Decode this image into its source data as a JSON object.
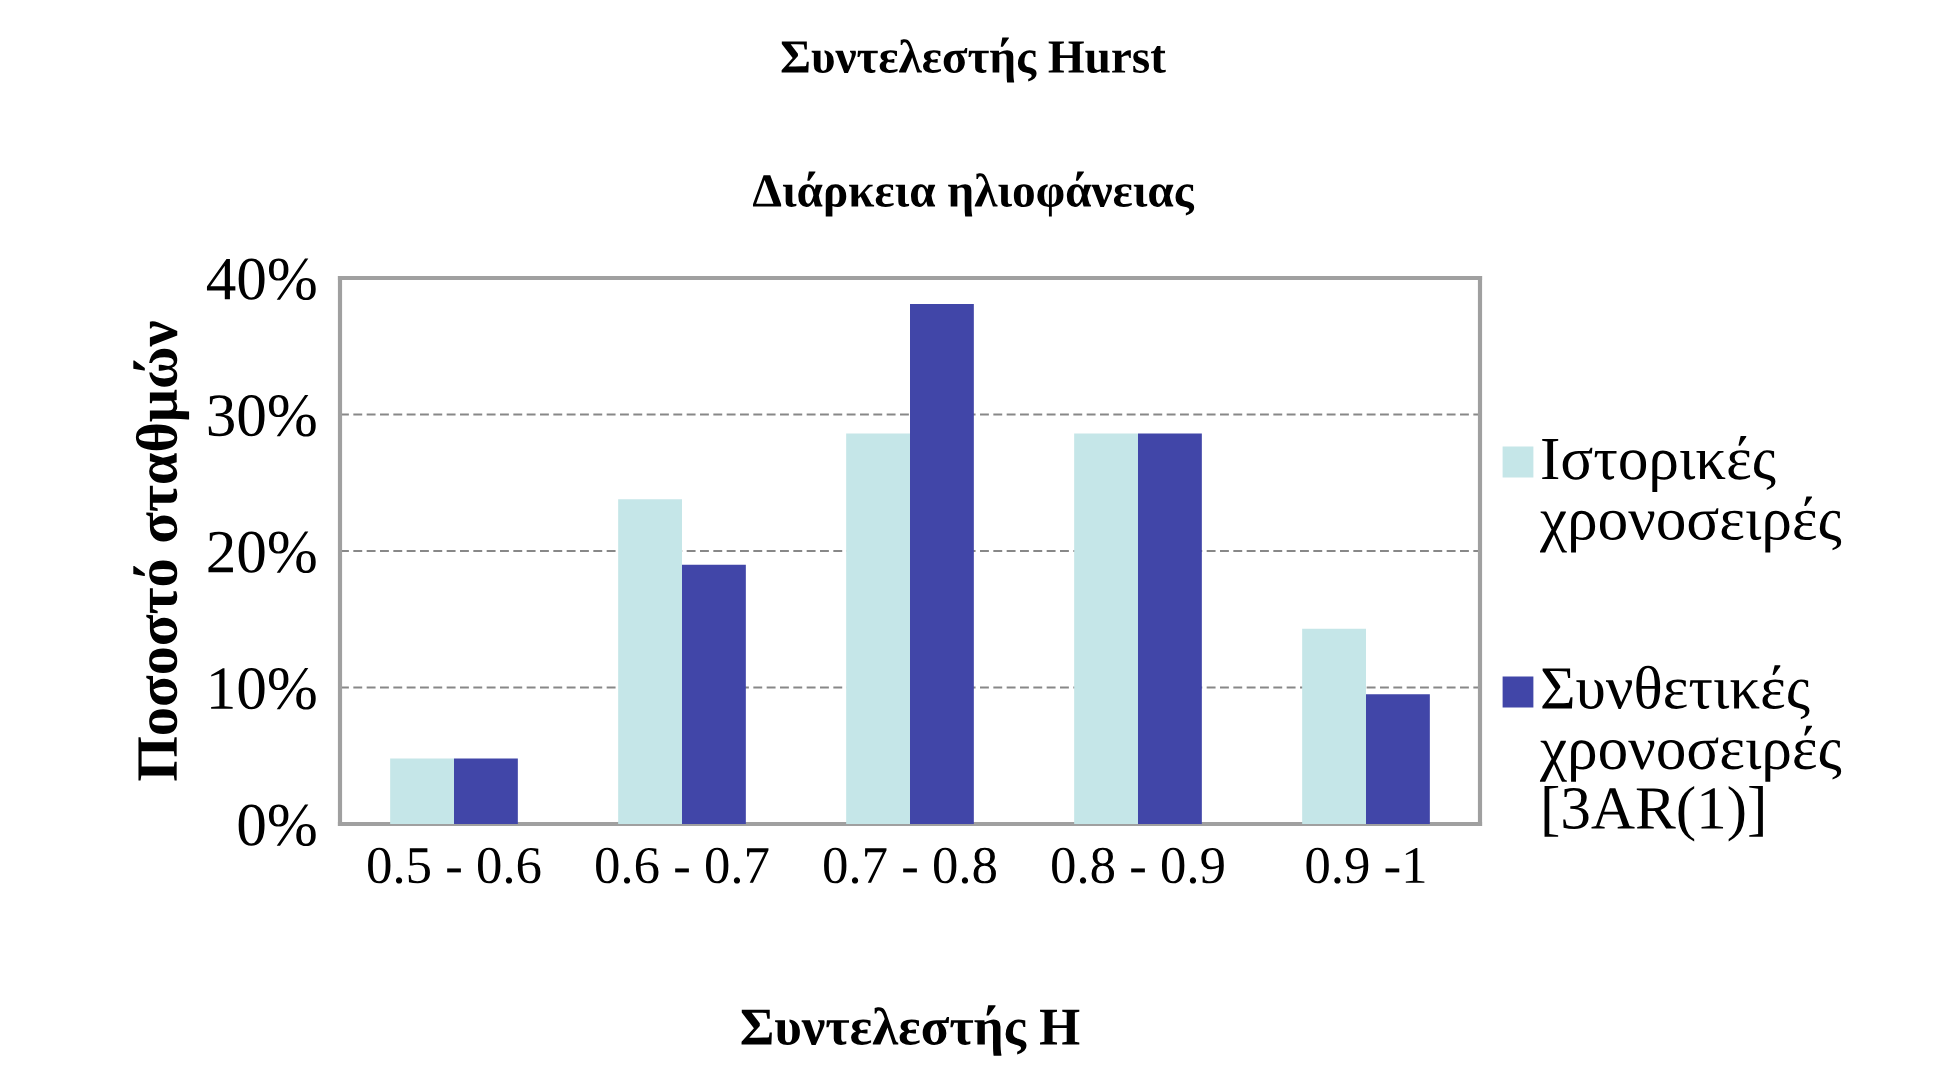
{
  "chart_data": {
    "type": "bar",
    "title": "Συντελεστής Hurst",
    "subtitle": "Διάρκεια ηλιοφάνειας",
    "xlabel": "Συντελεστής H",
    "ylabel": "Ποσοστό σταθμών",
    "categories": [
      "0.5 - 0.6",
      "0.6 - 0.7",
      "0.7 - 0.8",
      "0.8 - 0.9",
      "0.9 -1"
    ],
    "series": [
      {
        "name": "Ιστορικές χρονοσειρές",
        "color": "#c5e6e8",
        "values": [
          4.8,
          23.8,
          28.6,
          28.6,
          14.3
        ]
      },
      {
        "name": "Συνθετικές χρονοσειρές [3AR(1)]",
        "color": "#4146a8",
        "values": [
          4.8,
          19.0,
          38.1,
          28.6,
          9.5
        ]
      }
    ],
    "ylim": [
      0,
      40
    ],
    "yticks": [
      {
        "value": 0,
        "label": "0%"
      },
      {
        "value": 10,
        "label": "10%"
      },
      {
        "value": 20,
        "label": "20%"
      },
      {
        "value": 30,
        "label": "30%"
      },
      {
        "value": 40,
        "label": "40%"
      }
    ],
    "grid": "y",
    "legend": "right"
  }
}
